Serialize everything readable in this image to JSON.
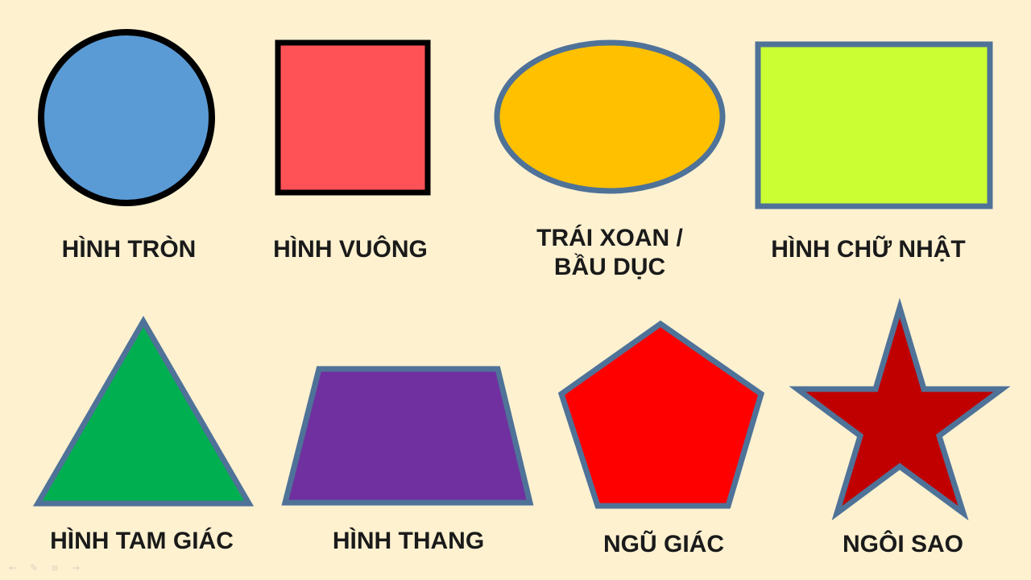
{
  "slide": {
    "background": "#fdf1d0"
  },
  "shapes": [
    {
      "id": "circle",
      "label": "HÌNH TRÒN",
      "fill": "#5b9bd5",
      "stroke": "#000000"
    },
    {
      "id": "square",
      "label": "HÌNH VUÔNG",
      "fill": "#ff5257",
      "stroke": "#000000"
    },
    {
      "id": "oval",
      "label_lines": [
        "TRÁI XOAN /",
        "BẦU DỤC"
      ],
      "fill": "#ffc000",
      "stroke": "#4f7298"
    },
    {
      "id": "rectangle",
      "label": "HÌNH CHỮ NHẬT",
      "fill": "#ccff33",
      "stroke": "#4f7298"
    },
    {
      "id": "triangle",
      "label": "HÌNH TAM GIÁC",
      "fill": "#00b050",
      "stroke": "#4f7298"
    },
    {
      "id": "trapezoid",
      "label": "HÌNH THANG",
      "fill": "#7030a0",
      "stroke": "#4f7298"
    },
    {
      "id": "pentagon",
      "label": "NGŨ GIÁC",
      "fill": "#ff0000",
      "stroke": "#4f7298"
    },
    {
      "id": "star",
      "label": "NGÔI SAO",
      "fill": "#c00000",
      "stroke": "#4f7298"
    }
  ],
  "nav_icons": [
    "arrow-left-icon",
    "pen-icon",
    "menu-icon",
    "arrow-right-icon"
  ]
}
